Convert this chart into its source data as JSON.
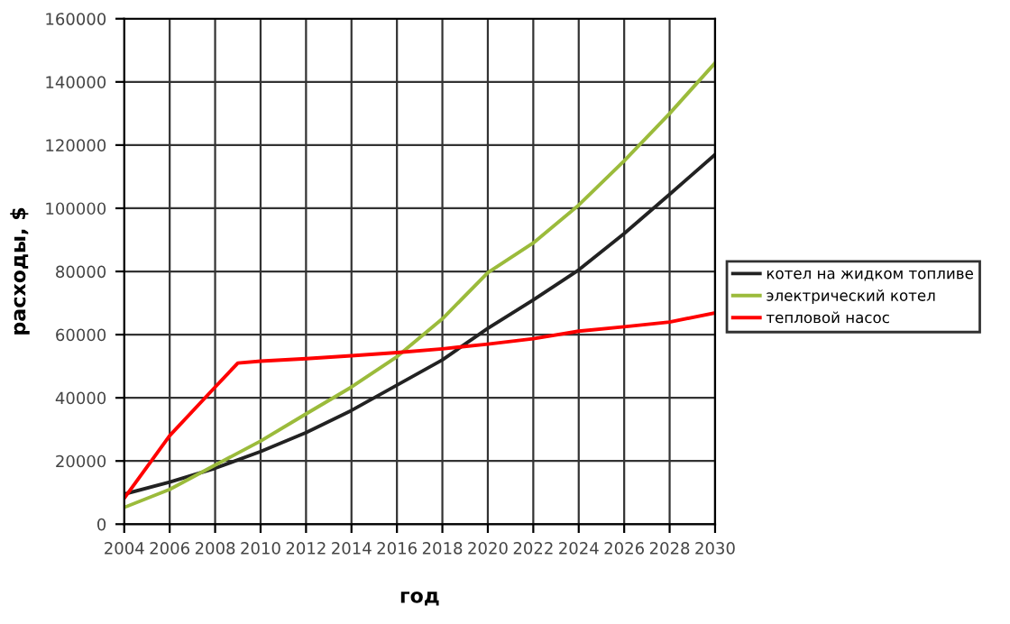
{
  "chart_data": {
    "type": "line",
    "xlabel": "год",
    "ylabel": "расходы, $",
    "xlim": [
      2004,
      2030
    ],
    "xticks": [
      2004,
      2006,
      2008,
      2010,
      2012,
      2014,
      2016,
      2018,
      2020,
      2022,
      2024,
      2026,
      2028,
      2030
    ],
    "ylim": [
      0,
      160000
    ],
    "yticks": [
      0,
      20000,
      40000,
      60000,
      80000,
      100000,
      120000,
      140000,
      160000
    ],
    "grid": true,
    "legend": "right",
    "marker": "none",
    "line_style": "solid",
    "series": [
      {
        "name": "котел на жидком топливе",
        "color": "#222222",
        "x": [
          2004,
          2006,
          2008,
          2010,
          2012,
          2014,
          2016,
          2018,
          2020,
          2022,
          2024,
          2026,
          2028,
          2030
        ],
        "values": [
          9500,
          13300,
          17700,
          23000,
          29000,
          36000,
          44000,
          52000,
          62000,
          71000,
          80500,
          92000,
          104400,
          117000
        ]
      },
      {
        "name": "электрический котел",
        "color": "#9bbb3b",
        "x": [
          2004,
          2006,
          2008,
          2010,
          2012,
          2014,
          2016,
          2018,
          2020,
          2022,
          2024,
          2026,
          2028,
          2030
        ],
        "values": [
          5300,
          11000,
          18700,
          26300,
          34900,
          43400,
          53000,
          65000,
          79600,
          89000,
          101000,
          115000,
          130000,
          146000
        ]
      },
      {
        "name": "тепловой насос",
        "color": "#ff0000",
        "x": [
          2004,
          2006,
          2008,
          2009,
          2010,
          2012,
          2014,
          2016,
          2018,
          2020,
          2022,
          2024,
          2026,
          2028,
          2030
        ],
        "values": [
          8200,
          28000,
          43400,
          51000,
          51600,
          52400,
          53300,
          54300,
          55500,
          57000,
          58700,
          61100,
          62500,
          64000,
          66900
        ]
      }
    ]
  }
}
